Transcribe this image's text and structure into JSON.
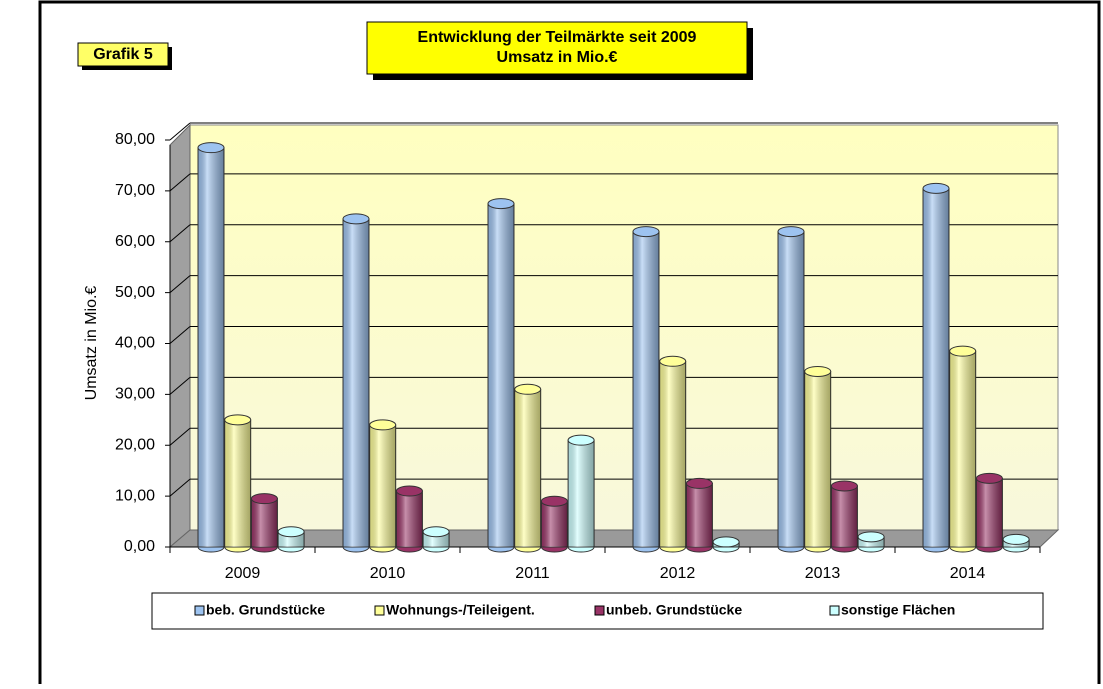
{
  "badge": "Grafik 5",
  "chart_data": {
    "type": "bar3d",
    "title": "Entwicklung der Teilmärkte seit 2009",
    "subtitle": "Umsatz in Mio.€",
    "ylabel": "Umsatz in Mio.€",
    "categories": [
      "2009",
      "2010",
      "2011",
      "2012",
      "2013",
      "2014"
    ],
    "series": [
      {
        "name": "beb. Grundstücke",
        "color": "#9dc3f0",
        "values": [
          78.5,
          64.5,
          67.5,
          62,
          62,
          70.5
        ]
      },
      {
        "name": "Wohnungs-/Teileigent.",
        "color": "#ffff99",
        "values": [
          25,
          24,
          31,
          36.5,
          34.5,
          38.5
        ]
      },
      {
        "name": "unbeb. Grundstücke",
        "color": "#993366",
        "values": [
          9.5,
          11,
          9,
          12.5,
          12,
          13.5
        ]
      },
      {
        "name": "sonstige Flächen",
        "color": "#ccffff",
        "values": [
          3,
          3,
          21,
          1,
          2,
          1.5
        ]
      }
    ],
    "ylim": [
      0,
      80
    ],
    "yticks": [
      {
        "value": 0,
        "label": "0,00"
      },
      {
        "value": 10,
        "label": "10,00"
      },
      {
        "value": 20,
        "label": "20,00"
      },
      {
        "value": 30,
        "label": "30,00"
      },
      {
        "value": 40,
        "label": "40,00"
      },
      {
        "value": 50,
        "label": "50,00"
      },
      {
        "value": 60,
        "label": "60,00"
      },
      {
        "value": 70,
        "label": "70,00"
      },
      {
        "value": 80,
        "label": "80,00"
      }
    ],
    "grid": true,
    "legend": "bottom"
  }
}
